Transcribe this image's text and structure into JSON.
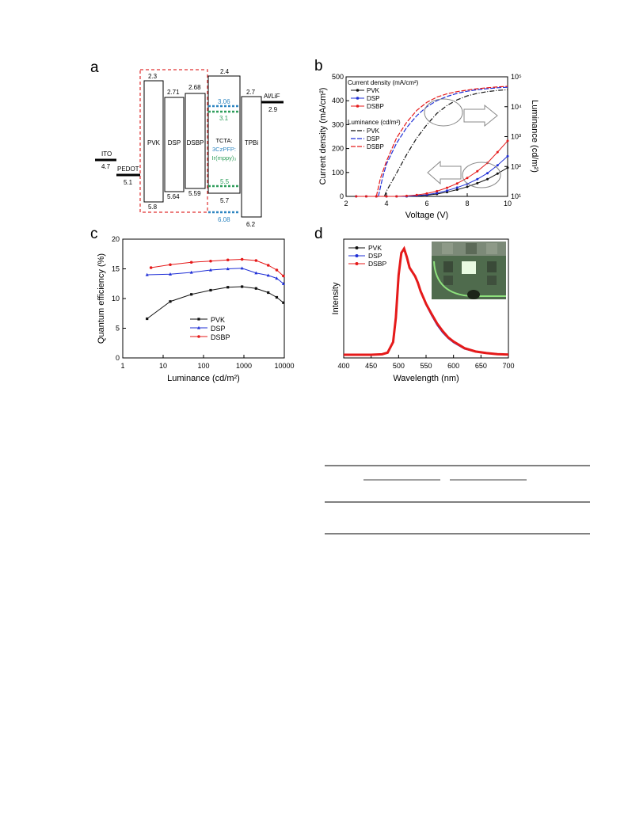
{
  "panel_labels": {
    "a": "a",
    "b": "b",
    "c": "c",
    "d": "d"
  },
  "panel_a": {
    "electrodes": [
      {
        "name": "ITO",
        "value": "4.7"
      },
      {
        "name": "PEDOT",
        "value": "5.1"
      },
      {
        "name": "Al/LiF",
        "value": "2.9"
      }
    ],
    "layers": [
      {
        "name": "PVK",
        "lumo": "2.3",
        "homo": "5.8"
      },
      {
        "name": "DSP",
        "lumo": "2.71",
        "homo": "5.64"
      },
      {
        "name": "DSBP",
        "lumo": "2.68",
        "homo": "5.59"
      },
      {
        "name": "TCTA:",
        "lumo": "2.4",
        "homo": "5.7"
      },
      {
        "name": "TPBi",
        "lumo": "2.7",
        "homo": "6.2"
      }
    ],
    "host_label": "3CzPFP:",
    "dopant_label": "Ir(mppy)₃",
    "host_levels": {
      "lumo": "3.06",
      "homo": "6.08"
    },
    "dopant_levels": {
      "lumo": "3.1",
      "homo": "5.5"
    },
    "colors": {
      "host": "#2e86c1",
      "dopant": "#2e9e5b",
      "dashed_box": "#e03030"
    }
  },
  "panel_b": {
    "legend_cd_title": "Current density (mA/cm²)",
    "legend_lum_title": "Luminance (cd/m²)",
    "series_names": [
      "PVK",
      "DSP",
      "DSBP"
    ],
    "chart_data": {
      "type": "line",
      "xlabel": "Voltage (V)",
      "ylabel": "Current density (mA/cm²)",
      "y2label": "Luminance (cd/m²)",
      "xlim": [
        2,
        10
      ],
      "ylim": [
        0,
        500
      ],
      "y2lim": [
        10,
        100000
      ],
      "y2scale": "log",
      "xticks": [
        "2",
        "4",
        "6",
        "8",
        "10"
      ],
      "yticks": [
        "0",
        "100",
        "200",
        "300",
        "400",
        "500"
      ],
      "y2ticks": [
        "10¹",
        "10²",
        "10³",
        "10⁴",
        "10⁵"
      ],
      "current_density": [
        {
          "name": "PVK",
          "x": [
            2.5,
            3,
            3.5,
            4,
            4.5,
            5,
            5.5,
            6,
            6.5,
            7,
            7.5,
            8,
            8.5,
            9,
            9.5,
            10
          ],
          "y": [
            0,
            0,
            0,
            0,
            0,
            0,
            2,
            5,
            10,
            18,
            28,
            40,
            55,
            72,
            95,
            120
          ]
        },
        {
          "name": "DSP",
          "x": [
            2.5,
            3,
            3.5,
            4,
            4.5,
            5,
            5.5,
            6,
            6.5,
            7,
            7.5,
            8,
            8.5,
            9,
            9.5,
            10
          ],
          "y": [
            0,
            0,
            0,
            0,
            0,
            0,
            3,
            7,
            14,
            24,
            37,
            52,
            72,
            97,
            130,
            168
          ]
        },
        {
          "name": "DSBP",
          "x": [
            2.5,
            3,
            3.5,
            4,
            4.5,
            5,
            5.5,
            6,
            6.5,
            7,
            7.5,
            8,
            8.5,
            9,
            9.5,
            10
          ],
          "y": [
            0,
            0,
            0,
            0,
            0,
            2,
            6,
            12,
            22,
            36,
            54,
            77,
            105,
            140,
            185,
            232
          ]
        }
      ],
      "luminance": [
        {
          "name": "PVK",
          "x": [
            3.9,
            4,
            4.5,
            5,
            5.5,
            6,
            6.5,
            7,
            7.5,
            8,
            8.5,
            9,
            9.5,
            10
          ],
          "y": [
            10,
            15,
            60,
            250,
            900,
            2500,
            6000,
            11000,
            17000,
            23000,
            28000,
            32000,
            35000,
            37000
          ]
        },
        {
          "name": "DSP",
          "x": [
            3.6,
            3.8,
            4,
            4.5,
            5,
            5.5,
            6,
            6.5,
            7,
            7.5,
            8,
            8.5,
            9,
            9.5,
            10
          ],
          "y": [
            10,
            40,
            120,
            600,
            2000,
            5000,
            10000,
            16000,
            22000,
            28000,
            33000,
            37000,
            40000,
            43000,
            45000
          ]
        },
        {
          "name": "DSBP",
          "x": [
            3.5,
            3.7,
            4,
            4.5,
            5,
            5.5,
            6,
            6.5,
            7,
            7.5,
            8,
            8.5,
            9,
            9.5,
            10
          ],
          "y": [
            10,
            40,
            150,
            900,
            3000,
            7500,
            14000,
            21000,
            27000,
            32000,
            36000,
            40000,
            43000,
            46000,
            48000
          ]
        }
      ]
    }
  },
  "panel_c": {
    "chart_data": {
      "type": "line",
      "xlabel": "Luminance (cd/m²)",
      "ylabel": "Quantum efficiency (%)",
      "xscale": "log",
      "xlim": [
        1,
        10000
      ],
      "ylim": [
        0,
        20
      ],
      "xticks": [
        "1",
        "10",
        "100",
        "1000",
        "10000"
      ],
      "yticks": [
        "0",
        "5",
        "10",
        "15",
        "20"
      ],
      "series": [
        {
          "name": "PVK",
          "x": [
            4,
            15,
            50,
            150,
            400,
            900,
            2000,
            4000,
            6500,
            9500
          ],
          "y": [
            6.6,
            9.5,
            10.7,
            11.4,
            11.9,
            12.0,
            11.7,
            11.0,
            10.2,
            9.3
          ]
        },
        {
          "name": "DSP",
          "x": [
            4,
            15,
            50,
            150,
            400,
            900,
            2000,
            4000,
            6500,
            9500
          ],
          "y": [
            14.0,
            14.1,
            14.4,
            14.8,
            15.0,
            15.1,
            14.3,
            13.9,
            13.4,
            12.5
          ]
        },
        {
          "name": "DSBP",
          "x": [
            5,
            15,
            50,
            150,
            400,
            900,
            2000,
            4000,
            6500,
            9500
          ],
          "y": [
            15.2,
            15.7,
            16.1,
            16.3,
            16.5,
            16.6,
            16.4,
            15.6,
            14.8,
            13.8
          ]
        }
      ]
    }
  },
  "panel_d": {
    "chart_data": {
      "type": "line",
      "xlabel": "Wavelength (nm)",
      "ylabel": "Intensity",
      "xlim": [
        400,
        700
      ],
      "xticks": [
        "400",
        "450",
        "500",
        "550",
        "600",
        "650",
        "700"
      ],
      "series": [
        {
          "name": "PVK",
          "x": [
            400,
            450,
            470,
            480,
            490,
            495,
            500,
            505,
            510,
            515,
            520,
            525,
            530,
            535,
            540,
            550,
            560,
            570,
            580,
            590,
            600,
            620,
            640,
            660,
            680,
            700
          ],
          "y": [
            0,
            0,
            0.005,
            0.02,
            0.12,
            0.35,
            0.75,
            0.96,
            1.0,
            0.92,
            0.82,
            0.78,
            0.74,
            0.68,
            0.6,
            0.48,
            0.38,
            0.29,
            0.22,
            0.16,
            0.12,
            0.06,
            0.03,
            0.015,
            0.006,
            0.002
          ]
        },
        {
          "name": "DSP",
          "x": [
            400,
            450,
            470,
            480,
            490,
            495,
            500,
            505,
            510,
            515,
            520,
            525,
            530,
            535,
            540,
            550,
            560,
            570,
            580,
            590,
            600,
            620,
            640,
            660,
            680,
            700
          ],
          "y": [
            0,
            0,
            0.005,
            0.02,
            0.12,
            0.35,
            0.75,
            0.96,
            1.0,
            0.92,
            0.82,
            0.78,
            0.74,
            0.68,
            0.6,
            0.47,
            0.37,
            0.28,
            0.21,
            0.155,
            0.115,
            0.055,
            0.027,
            0.013,
            0.005,
            0.002
          ]
        },
        {
          "name": "DSBP",
          "x": [
            400,
            450,
            470,
            480,
            490,
            495,
            500,
            505,
            510,
            515,
            520,
            525,
            530,
            535,
            540,
            550,
            560,
            570,
            580,
            590,
            600,
            620,
            640,
            660,
            680,
            700
          ],
          "y": [
            0,
            0,
            0.005,
            0.02,
            0.12,
            0.35,
            0.75,
            0.96,
            1.0,
            0.92,
            0.82,
            0.78,
            0.74,
            0.68,
            0.6,
            0.48,
            0.385,
            0.295,
            0.225,
            0.165,
            0.125,
            0.062,
            0.031,
            0.016,
            0.006,
            0.002
          ]
        }
      ]
    }
  },
  "colors": {
    "PVK": "#111111",
    "DSP": "#1f2fd6",
    "DSBP": "#e51a1a"
  }
}
